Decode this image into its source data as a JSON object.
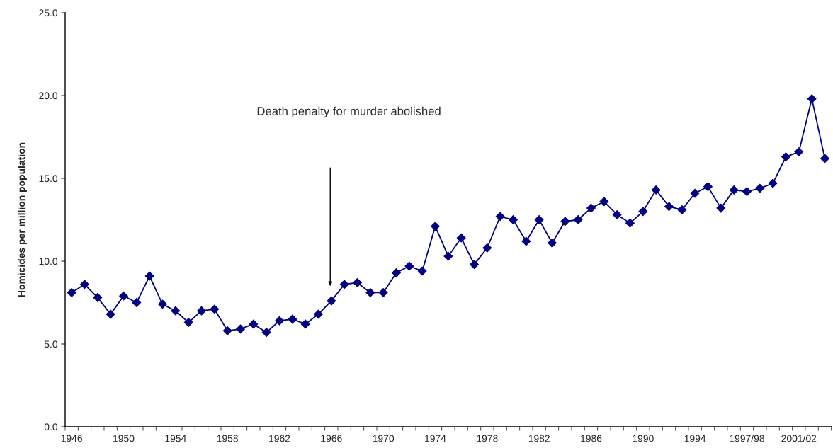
{
  "chart_data": {
    "type": "line",
    "ylabel": "Homicides per million population",
    "categories": [
      "1946",
      null,
      null,
      null,
      "1950",
      null,
      null,
      null,
      "1954",
      null,
      null,
      null,
      "1958",
      null,
      null,
      null,
      "1962",
      null,
      null,
      null,
      "1966",
      null,
      null,
      null,
      "1970",
      null,
      null,
      null,
      "1974",
      null,
      null,
      null,
      "1978",
      null,
      null,
      null,
      "1982",
      null,
      null,
      null,
      "1986",
      null,
      null,
      null,
      "1990",
      null,
      null,
      null,
      "1994",
      null,
      null,
      null,
      "1997/98",
      null,
      null,
      null,
      "2001/02",
      null,
      null
    ],
    "series": [
      {
        "color": "#000080",
        "values": [
          8.1,
          8.6,
          7.8,
          6.8,
          7.9,
          7.5,
          9.1,
          7.4,
          7.0,
          6.3,
          7.0,
          7.1,
          5.8,
          5.9,
          6.2,
          5.7,
          6.4,
          6.5,
          6.2,
          6.8,
          7.6,
          8.6,
          8.7,
          8.1,
          8.1,
          9.3,
          9.7,
          9.4,
          12.1,
          10.3,
          11.4,
          9.8,
          10.8,
          12.7,
          12.5,
          11.2,
          12.5,
          11.1,
          12.4,
          12.5,
          13.2,
          13.6,
          12.8,
          12.3,
          13.0,
          14.3,
          13.3,
          13.1,
          14.1,
          14.5,
          13.2,
          14.3,
          14.2,
          14.4,
          14.7,
          16.3,
          16.6,
          19.8,
          16.2
        ]
      }
    ],
    "ylim": [
      0,
      25
    ],
    "yticks": [
      {
        "value": 0,
        "label": "0.0"
      },
      {
        "value": 5,
        "label": "5.0"
      },
      {
        "value": 10,
        "label": "10.0"
      },
      {
        "value": 15,
        "label": "15.0"
      },
      {
        "value": 20,
        "label": "20.0"
      },
      {
        "value": 25,
        "label": "25.0"
      }
    ],
    "annotations": [
      "Death penalty for murder abolished"
    ],
    "marker": "diamond",
    "line_style": "solid",
    "grid": false,
    "legend": false
  }
}
